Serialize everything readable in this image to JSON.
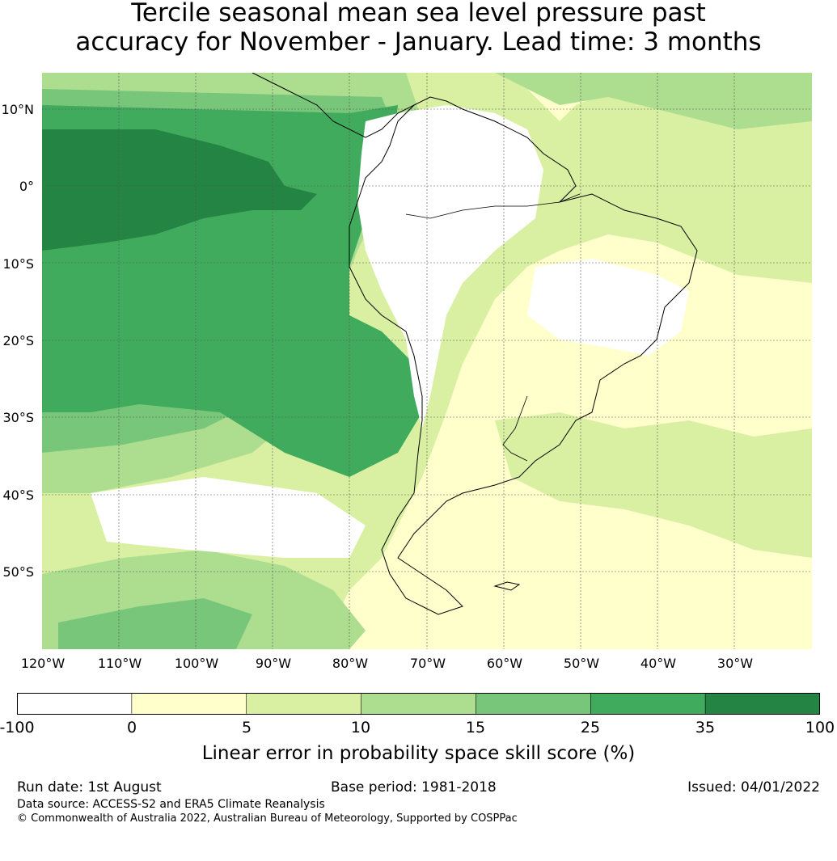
{
  "title": {
    "line1": "Tercile seasonal mean sea level pressure past",
    "line2": "accuracy for November - January. Lead time: 3 months"
  },
  "map": {
    "lat_labels": [
      "10°N",
      "0°",
      "10°S",
      "20°S",
      "30°S",
      "40°S",
      "50°S"
    ],
    "lon_labels": [
      "120°W",
      "110°W",
      "100°W",
      "90°W",
      "80°W",
      "70°W",
      "60°W",
      "50°W",
      "40°W",
      "30°W"
    ],
    "lat_range": [
      -60,
      15
    ],
    "lon_range": [
      -125,
      -25
    ],
    "gridlines": true,
    "region": "South America and surrounding oceans"
  },
  "legend": {
    "ticks": [
      "-100",
      "0",
      "5",
      "10",
      "15",
      "25",
      "35",
      "100"
    ],
    "bins": [
      {
        "from": -100,
        "to": 0,
        "color": "#ffffff"
      },
      {
        "from": 0,
        "to": 5,
        "color": "#ffffcc"
      },
      {
        "from": 5,
        "to": 10,
        "color": "#d9f0a3"
      },
      {
        "from": 10,
        "to": 15,
        "color": "#addd8e"
      },
      {
        "from": 15,
        "to": 25,
        "color": "#78c679"
      },
      {
        "from": 25,
        "to": 35,
        "color": "#41ab5d"
      },
      {
        "from": 35,
        "to": 100,
        "color": "#238443"
      }
    ],
    "label": "Linear error in probability space skill score (%)"
  },
  "footer": {
    "run_date": "Run date: 1st August",
    "base_period": "Base period: 1981-2018",
    "issued": "Issued: 04/01/2022",
    "data_source": "Data source: ACCESS-S2 and ERA5 Climate Reanalysis",
    "copyright": "© Commonwealth of Australia 2022, Australian Bureau of Meteorology, Supported by COSPPac"
  }
}
